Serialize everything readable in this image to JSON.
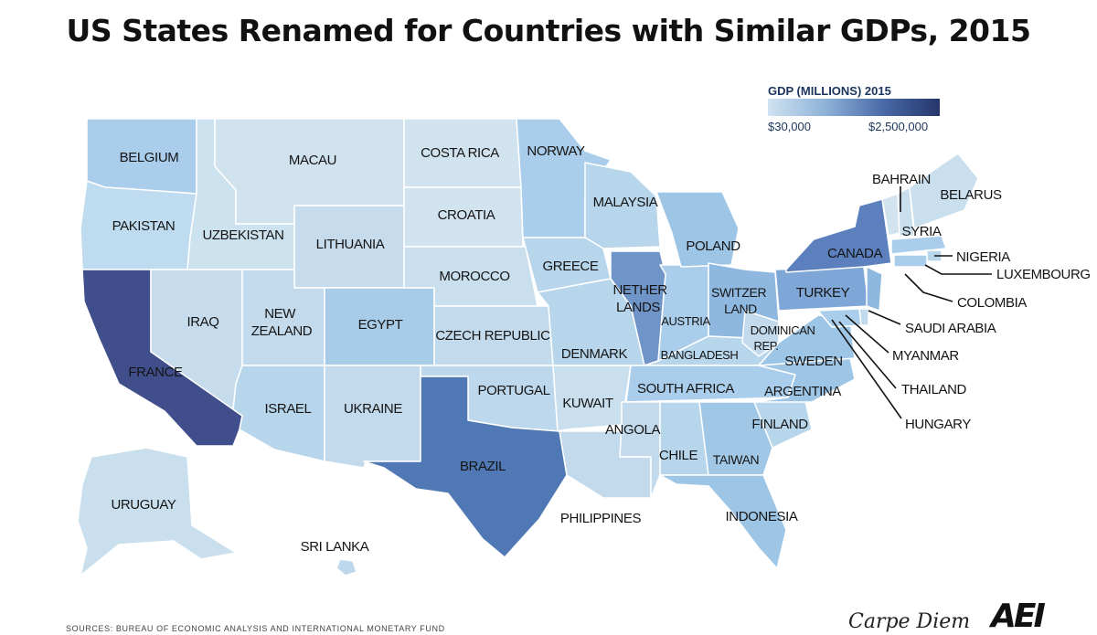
{
  "title": "US States Renamed for Countries with Similar GDPs, 2015",
  "legend": {
    "title": "GDP (MILLIONS) 2015",
    "min_label": "$30,000",
    "max_label": "$2,500,000",
    "colors": [
      "#cfe3f2",
      "#8fb2d8",
      "#4a6aa8",
      "#25366b"
    ]
  },
  "states": {
    "WA": "BELGIUM",
    "OR": "PAKISTAN",
    "CA": "FRANCE",
    "ID": "UZBEKISTAN",
    "NV": "IRAQ",
    "MT": "MACAU",
    "WY": "LITHUANIA",
    "UT": "NEW ZEALAND",
    "CO": "EGYPT",
    "AZ": "ISRAEL",
    "NM": "UKRAINE",
    "ND": "COSTA RICA",
    "SD": "CROATIA",
    "NE": "MOROCCO",
    "KS": "CZECH REPUBLIC",
    "OK": "PORTUGAL",
    "TX": "BRAZIL",
    "MN": "NORWAY",
    "WI": "MALAYSIA",
    "IA": "GREECE",
    "MO": "DENMARK",
    "AR": "KUWAIT",
    "LA": "ANGOLA",
    "IL": "NETHER LANDS",
    "IN": "AUSTRIA",
    "MI": "POLAND",
    "OH": "SWITZER LAND",
    "KY": "BANGLADESH",
    "TN": "SOUTH AFRICA",
    "MS": "PHILIPPINES",
    "AL": "CHILE",
    "GA": "TAIWAN",
    "FL": "INDONESIA",
    "SC": "FINLAND",
    "NC": "ARGENTINA",
    "VA": "SWEDEN",
    "WV": "DOMINICAN REP.",
    "PA": "TURKEY",
    "NY": "CANADA",
    "VT": "BAHRAIN",
    "NH": "SYRIA",
    "ME": "BELARUS",
    "RI": "NIGERIA",
    "CT": "LUXEMBOURG",
    "NJ": "COLOMBIA",
    "DE": "SAUDI ARABIA",
    "MD": "MYANMAR",
    "DC": "THAILAND",
    "MA": "HUNGARY",
    "AK": "URUGUAY",
    "HI": "SRI LANKA"
  },
  "source": "SOURCES: BUREAU OF ECONOMIC ANALYSIS AND INTERNATIONAL MONETARY FUND",
  "branding": {
    "carpe": "Carpe Diem",
    "logo": "AEI"
  }
}
